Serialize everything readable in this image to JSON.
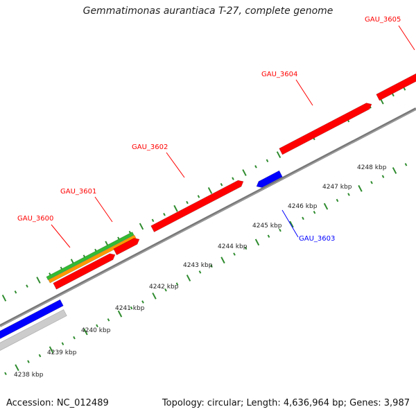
{
  "title": "Gemmatimonas aurantiaca T-27, complete genome",
  "footer": {
    "accession": "Accession: NC_012489",
    "summary": "Topology: circular; Length: 4,636,964 bp; Genes: 3,987"
  },
  "colors": {
    "forward_cds": "#ff0000",
    "reverse_cds": "#0000ff",
    "rna_gene": "#cccccc",
    "green_track": "#33bb33",
    "orange_track": "#ff9900",
    "tick": "#2e8b2e",
    "backbone": "#777777"
  },
  "genes": [
    {
      "id": "GAU_3600",
      "label": "GAU_3600",
      "strand": "+"
    },
    {
      "id": "GAU_3601",
      "label": "GAU_3601",
      "strand": "+"
    },
    {
      "id": "GAU_3602",
      "label": "GAU_3602",
      "strand": "+"
    },
    {
      "id": "GAU_3603",
      "label": "GAU_3603",
      "strand": "-"
    },
    {
      "id": "GAU_3604",
      "label": "GAU_3604",
      "strand": "+"
    },
    {
      "id": "GAU_3605",
      "label": "GAU_3605",
      "strand": "+"
    }
  ],
  "kbp_labels": [
    "4238 kbp",
    "4239 kbp",
    "4240 kbp",
    "4241 kbp",
    "4242 kbp",
    "4243 kbp",
    "4244 kbp",
    "4245 kbp",
    "4246 kbp",
    "4247 kbp",
    "4248 kbp"
  ]
}
